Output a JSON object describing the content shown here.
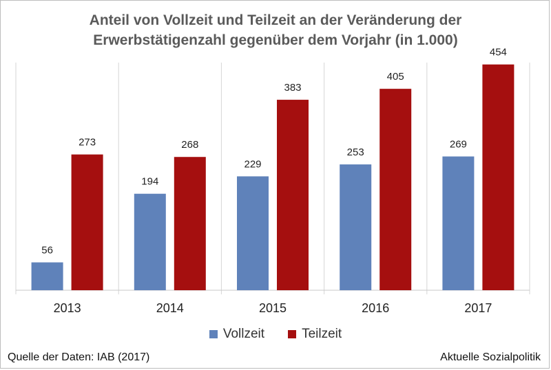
{
  "title_lines": [
    "Anteil von Vollzeit und Teilzeit an der Veränderung der",
    "Erwerbstätigenzahl gegenüber dem Vorjahr (in 1.000)"
  ],
  "source": "Quelle der Daten: IAB (2017)",
  "brand": "Aktuelle Sozialpolitik",
  "chart_data": {
    "type": "bar",
    "title": "Anteil von Vollzeit und Teilzeit an der Veränderung der Erwerbstätigenzahl gegenüber dem Vorjahr (in 1.000)",
    "categories": [
      "2013",
      "2014",
      "2015",
      "2016",
      "2017"
    ],
    "series": [
      {
        "name": "Vollzeit",
        "color": "#5f82ba",
        "values": [
          56,
          194,
          229,
          253,
          269
        ]
      },
      {
        "name": "Teilzeit",
        "color": "#a50f0f",
        "values": [
          273,
          268,
          383,
          405,
          454
        ]
      }
    ],
    "ylim": [
      0,
      500
    ],
    "y_axis_visible": false,
    "grid": "vertical category separators",
    "legend_position": "bottom-center",
    "data_labels": true
  }
}
